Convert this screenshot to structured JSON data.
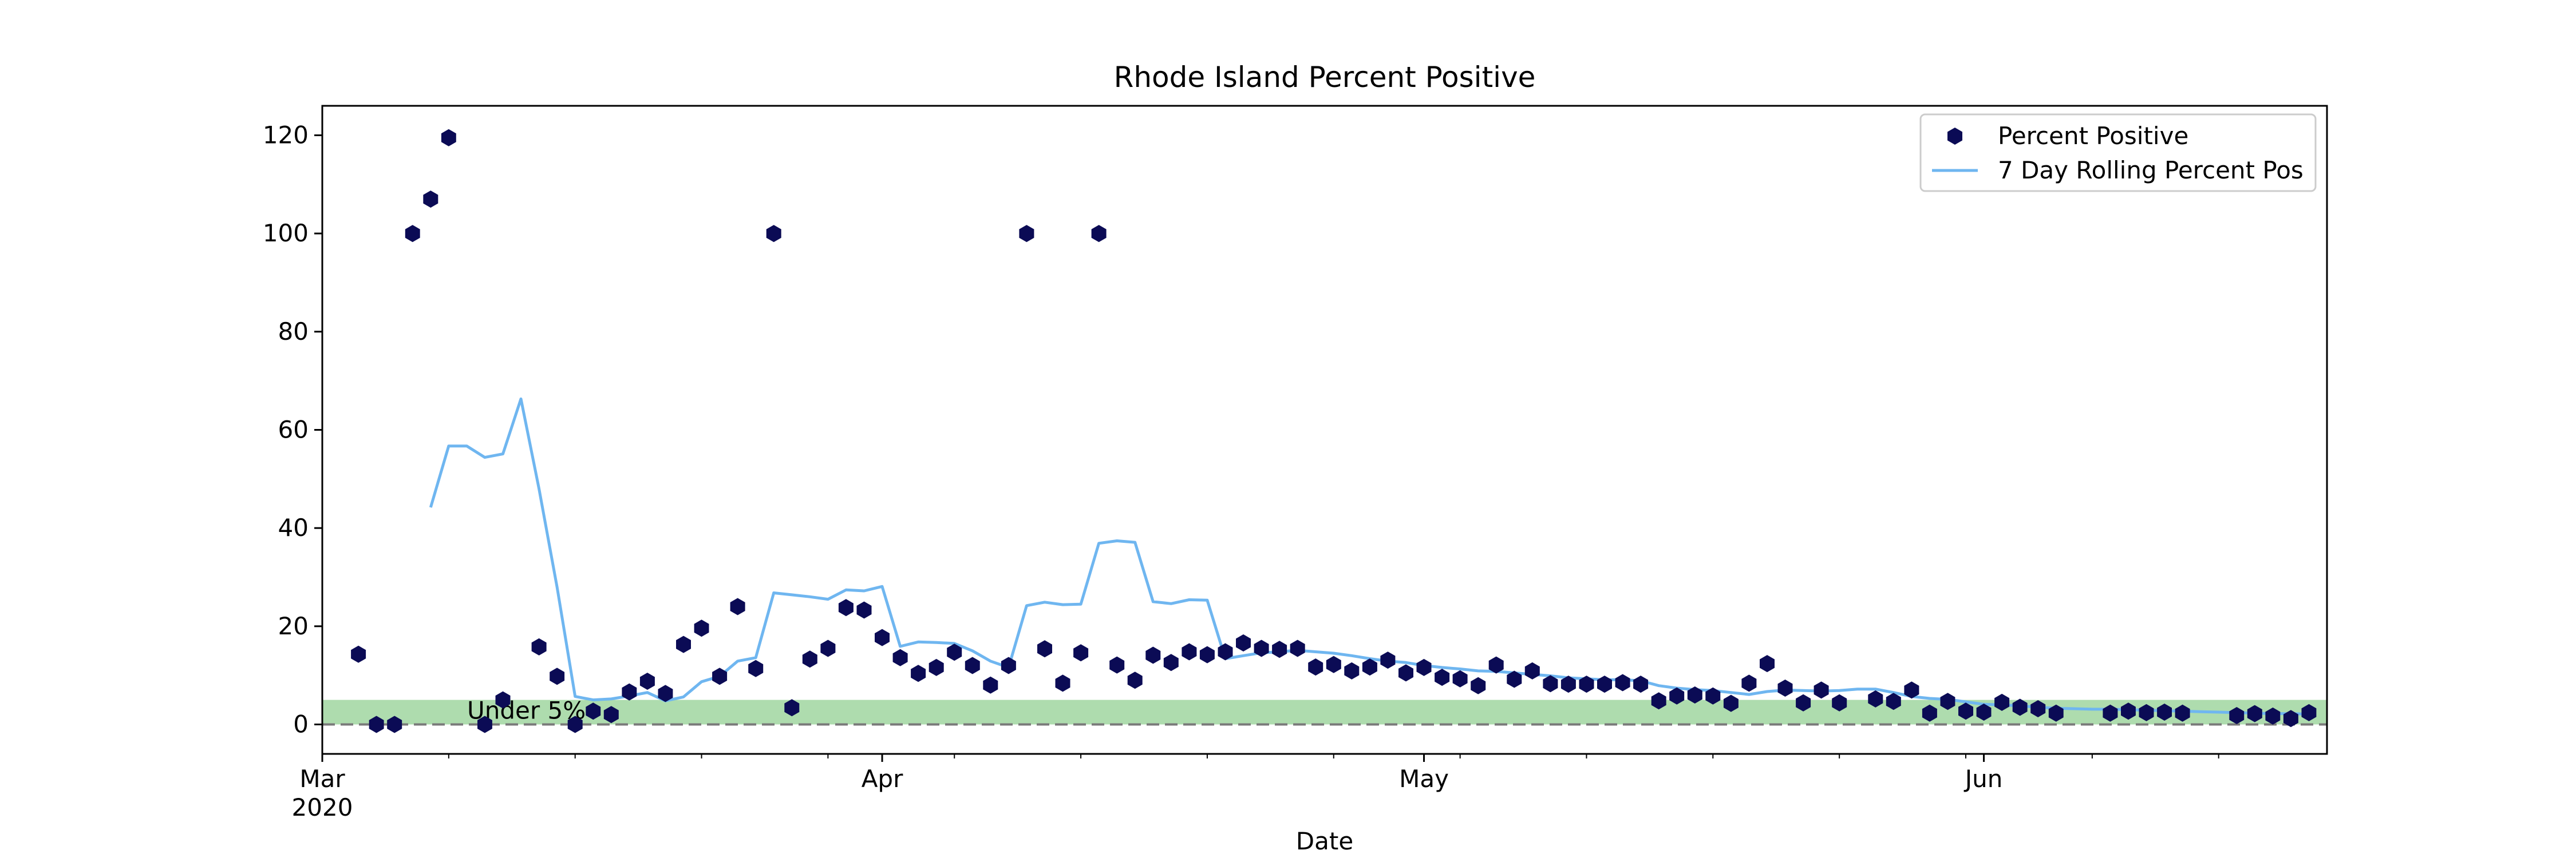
{
  "chart_data": {
    "type": "scatter",
    "title": "Rhode Island Percent Positive",
    "xlabel": "Date",
    "ylabel": "",
    "xlim": [
      "2020-03-01",
      "2020-06-20"
    ],
    "ylim": [
      -6,
      126
    ],
    "yticks": [
      0,
      20,
      40,
      60,
      80,
      100,
      120
    ],
    "xticks": [
      {
        "date": "2020-03-01",
        "label": "Mar",
        "sublabel": "2020"
      },
      {
        "date": "2020-04-01",
        "label": "Apr",
        "sublabel": ""
      },
      {
        "date": "2020-05-01",
        "label": "May",
        "sublabel": ""
      },
      {
        "date": "2020-06-01",
        "label": "Jun",
        "sublabel": ""
      }
    ],
    "grid": false,
    "legend_position": "top-right",
    "band": {
      "y0": 0,
      "y1": 5,
      "label": "Under 5%",
      "color": "#6bbf6b",
      "line_color": "#7a7a7a"
    },
    "series": [
      {
        "name": "Percent Positive",
        "kind": "scatter",
        "color": "#0b0b55",
        "points": [
          [
            "2020-03-03",
            14.3
          ],
          [
            "2020-03-04",
            0
          ],
          [
            "2020-03-05",
            0
          ],
          [
            "2020-03-06",
            100
          ],
          [
            "2020-03-07",
            107
          ],
          [
            "2020-03-08",
            119.5
          ],
          [
            "2020-03-10",
            0
          ],
          [
            "2020-03-11",
            5
          ],
          [
            "2020-03-13",
            15.8
          ],
          [
            "2020-03-14",
            9.8
          ],
          [
            "2020-03-15",
            0
          ],
          [
            "2020-03-16",
            2.7
          ],
          [
            "2020-03-17",
            2
          ],
          [
            "2020-03-18",
            6.6
          ],
          [
            "2020-03-19",
            8.8
          ],
          [
            "2020-03-20",
            6.3
          ],
          [
            "2020-03-21",
            16.3
          ],
          [
            "2020-03-22",
            19.6
          ],
          [
            "2020-03-23",
            9.8
          ],
          [
            "2020-03-24",
            24
          ],
          [
            "2020-03-25",
            11.4
          ],
          [
            "2020-03-26",
            100
          ],
          [
            "2020-03-27",
            3.4
          ],
          [
            "2020-03-28",
            13.3
          ],
          [
            "2020-03-29",
            15.5
          ],
          [
            "2020-03-30",
            23.8
          ],
          [
            "2020-03-31",
            23.3
          ],
          [
            "2020-04-01",
            17.7
          ],
          [
            "2020-04-02",
            13.6
          ],
          [
            "2020-04-03",
            10.4
          ],
          [
            "2020-04-04",
            11.6
          ],
          [
            "2020-04-05",
            14.7
          ],
          [
            "2020-04-06",
            12
          ],
          [
            "2020-04-07",
            8
          ],
          [
            "2020-04-08",
            12
          ],
          [
            "2020-04-09",
            100
          ],
          [
            "2020-04-10",
            15.4
          ],
          [
            "2020-04-11",
            8.4
          ],
          [
            "2020-04-12",
            14.6
          ],
          [
            "2020-04-13",
            100
          ],
          [
            "2020-04-14",
            12.1
          ],
          [
            "2020-04-15",
            9
          ],
          [
            "2020-04-16",
            14.1
          ],
          [
            "2020-04-17",
            12.6
          ],
          [
            "2020-04-18",
            14.8
          ],
          [
            "2020-04-19",
            14.2
          ],
          [
            "2020-04-20",
            14.8
          ],
          [
            "2020-04-21",
            16.6
          ],
          [
            "2020-04-22",
            15.5
          ],
          [
            "2020-04-23",
            15.3
          ],
          [
            "2020-04-24",
            15.5
          ],
          [
            "2020-04-25",
            11.7
          ],
          [
            "2020-04-26",
            12.2
          ],
          [
            "2020-04-27",
            10.9
          ],
          [
            "2020-04-28",
            11.7
          ],
          [
            "2020-04-29",
            13.1
          ],
          [
            "2020-04-30",
            10.5
          ],
          [
            "2020-05-01",
            11.6
          ],
          [
            "2020-05-02",
            9.6
          ],
          [
            "2020-05-03",
            9.3
          ],
          [
            "2020-05-04",
            7.9
          ],
          [
            "2020-05-05",
            12.1
          ],
          [
            "2020-05-06",
            9.2
          ],
          [
            "2020-05-07",
            10.9
          ],
          [
            "2020-05-08",
            8.3
          ],
          [
            "2020-05-09",
            8.2
          ],
          [
            "2020-05-10",
            8.2
          ],
          [
            "2020-05-11",
            8.2
          ],
          [
            "2020-05-12",
            8.5
          ],
          [
            "2020-05-13",
            8.2
          ],
          [
            "2020-05-14",
            4.8
          ],
          [
            "2020-05-15",
            5.8
          ],
          [
            "2020-05-16",
            6
          ],
          [
            "2020-05-17",
            5.8
          ],
          [
            "2020-05-18",
            4.3
          ],
          [
            "2020-05-19",
            8.4
          ],
          [
            "2020-05-20",
            12.4
          ],
          [
            "2020-05-21",
            7.4
          ],
          [
            "2020-05-22",
            4.4
          ],
          [
            "2020-05-23",
            7
          ],
          [
            "2020-05-24",
            4.4
          ],
          [
            "2020-05-26",
            5.2
          ],
          [
            "2020-05-27",
            4.7
          ],
          [
            "2020-05-28",
            7
          ],
          [
            "2020-05-29",
            2.3
          ],
          [
            "2020-05-30",
            4.7
          ],
          [
            "2020-05-31",
            2.7
          ],
          [
            "2020-06-01",
            2.5
          ],
          [
            "2020-06-02",
            4.5
          ],
          [
            "2020-06-03",
            3.5
          ],
          [
            "2020-06-04",
            3.2
          ],
          [
            "2020-06-05",
            2.3
          ],
          [
            "2020-06-08",
            2.3
          ],
          [
            "2020-06-09",
            2.7
          ],
          [
            "2020-06-10",
            2.4
          ],
          [
            "2020-06-11",
            2.5
          ],
          [
            "2020-06-12",
            2.3
          ],
          [
            "2020-06-15",
            1.8
          ],
          [
            "2020-06-16",
            2.2
          ],
          [
            "2020-06-17",
            1.7
          ],
          [
            "2020-06-18",
            1.2
          ],
          [
            "2020-06-19",
            2.4
          ]
        ]
      },
      {
        "name": "7 Day Rolling Percent Pos",
        "kind": "line",
        "color": "#6fb6f0",
        "points": [
          [
            "2020-03-07",
            44.2
          ],
          [
            "2020-03-08",
            56.7
          ],
          [
            "2020-03-09",
            56.7
          ],
          [
            "2020-03-10",
            54.4
          ],
          [
            "2020-03-11",
            55.1
          ],
          [
            "2020-03-12",
            66.3
          ],
          [
            "2020-03-13",
            48
          ],
          [
            "2020-03-14",
            28
          ],
          [
            "2020-03-15",
            5.7
          ],
          [
            "2020-03-16",
            5
          ],
          [
            "2020-03-17",
            5.2
          ],
          [
            "2020-03-18",
            5.8
          ],
          [
            "2020-03-19",
            6.5
          ],
          [
            "2020-03-20",
            4.8
          ],
          [
            "2020-03-21",
            5.6
          ],
          [
            "2020-03-22",
            8.7
          ],
          [
            "2020-03-23",
            9.8
          ],
          [
            "2020-03-24",
            12.9
          ],
          [
            "2020-03-25",
            13.6
          ],
          [
            "2020-03-26",
            26.8
          ],
          [
            "2020-03-27",
            26.4
          ],
          [
            "2020-03-28",
            26
          ],
          [
            "2020-03-29",
            25.5
          ],
          [
            "2020-03-30",
            27.4
          ],
          [
            "2020-03-31",
            27.2
          ],
          [
            "2020-04-01",
            28.1
          ],
          [
            "2020-04-02",
            15.9
          ],
          [
            "2020-04-03",
            16.8
          ],
          [
            "2020-04-04",
            16.7
          ],
          [
            "2020-04-05",
            16.5
          ],
          [
            "2020-04-06",
            15
          ],
          [
            "2020-04-07",
            12.9
          ],
          [
            "2020-04-08",
            11.6
          ],
          [
            "2020-04-09",
            24.2
          ],
          [
            "2020-04-10",
            24.9
          ],
          [
            "2020-04-11",
            24.4
          ],
          [
            "2020-04-12",
            24.5
          ],
          [
            "2020-04-13",
            36.9
          ],
          [
            "2020-04-14",
            37.4
          ],
          [
            "2020-04-15",
            37.1
          ],
          [
            "2020-04-16",
            25
          ],
          [
            "2020-04-17",
            24.6
          ],
          [
            "2020-04-18",
            25.4
          ],
          [
            "2020-04-19",
            25.3
          ],
          [
            "2020-04-20",
            13.4
          ],
          [
            "2020-04-21",
            14
          ],
          [
            "2020-04-22",
            14.6
          ],
          [
            "2020-04-23",
            14.8
          ],
          [
            "2020-04-24",
            15.1
          ],
          [
            "2020-04-25",
            14.8
          ],
          [
            "2020-04-26",
            14.5
          ],
          [
            "2020-04-27",
            14
          ],
          [
            "2020-04-28",
            13.4
          ],
          [
            "2020-04-29",
            12.9
          ],
          [
            "2020-04-30",
            12.6
          ],
          [
            "2020-05-01",
            12
          ],
          [
            "2020-05-02",
            11.6
          ],
          [
            "2020-05-03",
            11.3
          ],
          [
            "2020-05-04",
            10.9
          ],
          [
            "2020-05-05",
            10.8
          ],
          [
            "2020-05-06",
            10.5
          ],
          [
            "2020-05-07",
            10.2
          ],
          [
            "2020-05-08",
            9.9
          ],
          [
            "2020-05-09",
            9.5
          ],
          [
            "2020-05-10",
            9.3
          ],
          [
            "2020-05-11",
            9.1
          ],
          [
            "2020-05-12",
            9.1
          ],
          [
            "2020-05-13",
            8.9
          ],
          [
            "2020-05-14",
            7.9
          ],
          [
            "2020-05-15",
            7.4
          ],
          [
            "2020-05-16",
            7.1
          ],
          [
            "2020-05-17",
            6.9
          ],
          [
            "2020-05-18",
            6.5
          ],
          [
            "2020-05-19",
            6.1
          ],
          [
            "2020-05-20",
            6.7
          ],
          [
            "2020-05-21",
            7
          ],
          [
            "2020-05-22",
            6.9
          ],
          [
            "2020-05-23",
            6.8
          ],
          [
            "2020-05-24",
            6.9
          ],
          [
            "2020-05-25",
            7.2
          ],
          [
            "2020-05-26",
            7.2
          ],
          [
            "2020-05-27",
            6.5
          ],
          [
            "2020-05-28",
            5.7
          ],
          [
            "2020-05-29",
            5.3
          ],
          [
            "2020-05-30",
            5.1
          ],
          [
            "2020-05-31",
            4.6
          ],
          [
            "2020-06-01",
            4.1
          ],
          [
            "2020-06-02",
            4
          ],
          [
            "2020-06-03",
            3.8
          ],
          [
            "2020-06-04",
            3.5
          ],
          [
            "2020-06-05",
            3.3
          ],
          [
            "2020-06-06",
            3.2
          ],
          [
            "2020-06-07",
            3.1
          ],
          [
            "2020-06-08",
            3.1
          ],
          [
            "2020-06-09",
            3
          ],
          [
            "2020-06-10",
            2.9
          ],
          [
            "2020-06-11",
            2.8
          ],
          [
            "2020-06-12",
            2.7
          ],
          [
            "2020-06-13",
            2.6
          ],
          [
            "2020-06-14",
            2.5
          ],
          [
            "2020-06-15",
            2.4
          ],
          [
            "2020-06-16",
            2.3
          ],
          [
            "2020-06-17",
            2.2
          ],
          [
            "2020-06-18",
            2.2
          ],
          [
            "2020-06-19",
            2.1
          ]
        ]
      }
    ]
  }
}
